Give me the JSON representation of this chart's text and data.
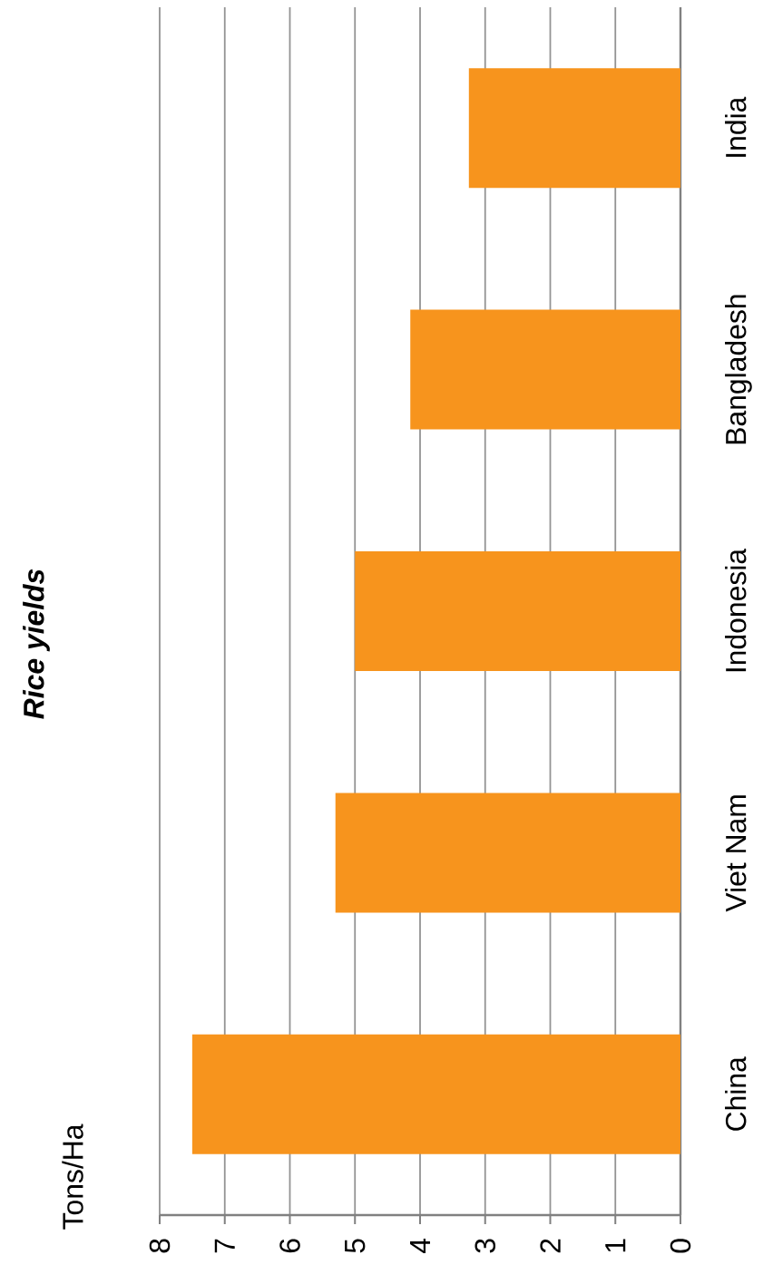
{
  "chart_data": {
    "type": "bar",
    "orientation": "horizontal",
    "title": "Rice yields",
    "annotations": [
      "Tons/Ha"
    ],
    "categories": [
      "India",
      "Bangladesh",
      "Indonesia",
      "Viet Nam",
      "China"
    ],
    "values": [
      3.25,
      4.15,
      5.0,
      5.3,
      7.5
    ],
    "color": "#f7941d",
    "xlim": [
      8,
      0
    ],
    "xticks": [
      8,
      7,
      6,
      5,
      4,
      3,
      2,
      1,
      0
    ],
    "grid": "x"
  }
}
